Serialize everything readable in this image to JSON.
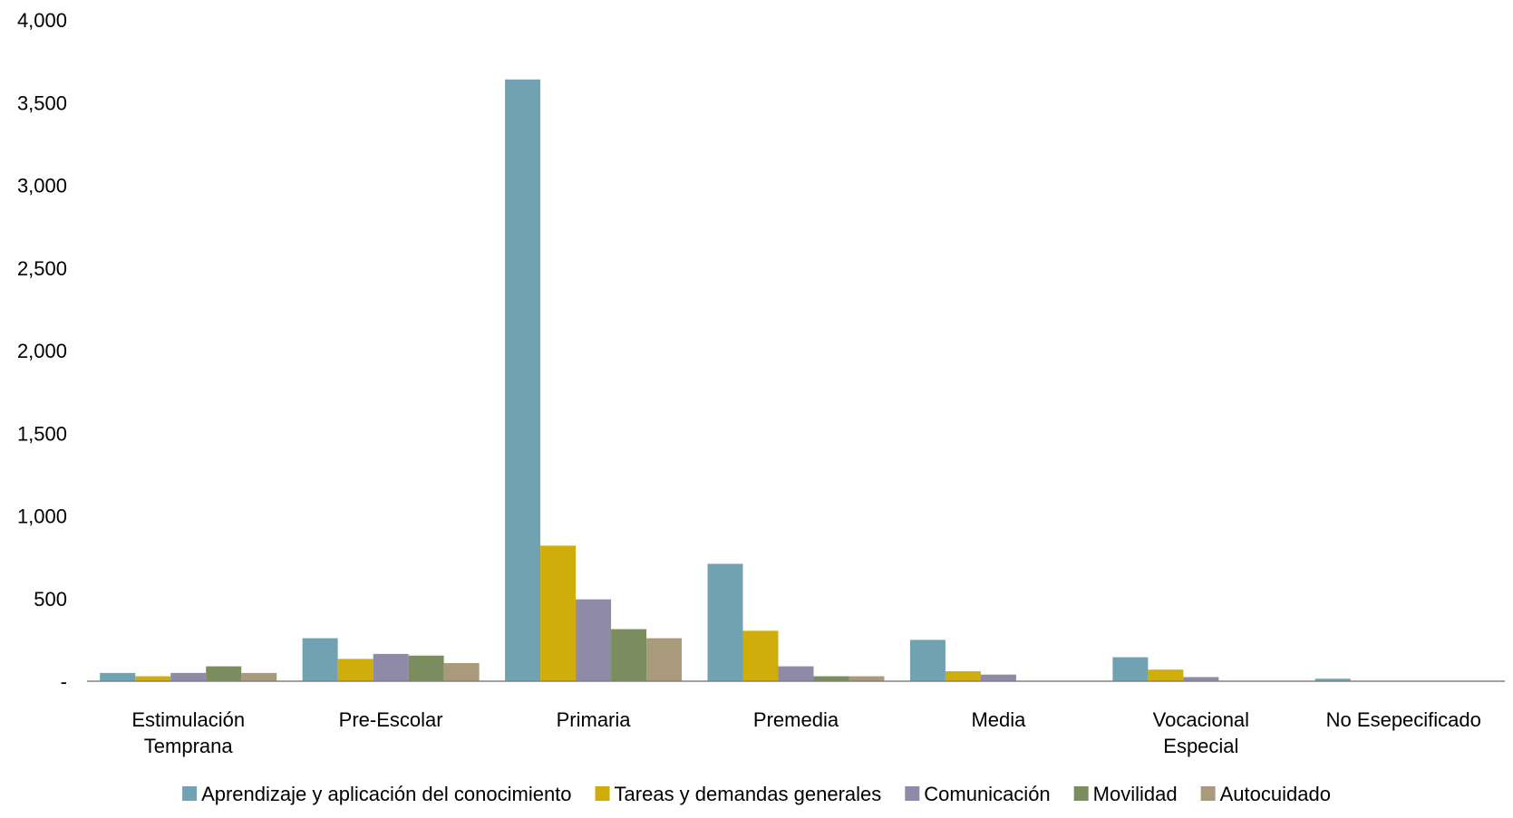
{
  "chart_data": {
    "type": "bar",
    "title": "",
    "xlabel": "",
    "ylabel": "",
    "ylim": [
      0,
      4000
    ],
    "yticks": [
      0,
      500,
      1000,
      1500,
      2000,
      2500,
      3000,
      3500,
      4000
    ],
    "ytick_labels": [
      "-",
      "500",
      "1,000",
      "1,500",
      "2,000",
      "2,500",
      "3,000",
      "3,500",
      "4,000"
    ],
    "grid": false,
    "legend_position": "bottom",
    "categories": [
      [
        "Estimulación",
        "Temprana"
      ],
      [
        "Pre-Escolar"
      ],
      [
        "Primaria"
      ],
      [
        "Premedia"
      ],
      [
        "Media"
      ],
      [
        "Vocacional",
        "Especial"
      ],
      [
        "No Esepecificado"
      ]
    ],
    "series": [
      {
        "name": "Aprendizaje y aplicación del conocimiento",
        "color": "#70A2B1",
        "values": [
          50,
          260,
          3640,
          710,
          250,
          145,
          15
        ]
      },
      {
        "name": "Tareas y demandas generales",
        "color": "#CFAE0B",
        "values": [
          30,
          135,
          820,
          305,
          60,
          70,
          0
        ]
      },
      {
        "name": "Comunicación",
        "color": "#8F8AA8",
        "values": [
          50,
          165,
          495,
          90,
          40,
          25,
          0
        ]
      },
      {
        "name": "Movilidad",
        "color": "#7B8C5E",
        "values": [
          90,
          155,
          315,
          30,
          0,
          0,
          0
        ]
      },
      {
        "name": "Autocuidado",
        "color": "#A89A7A",
        "values": [
          50,
          110,
          260,
          30,
          0,
          0,
          0
        ]
      }
    ]
  }
}
